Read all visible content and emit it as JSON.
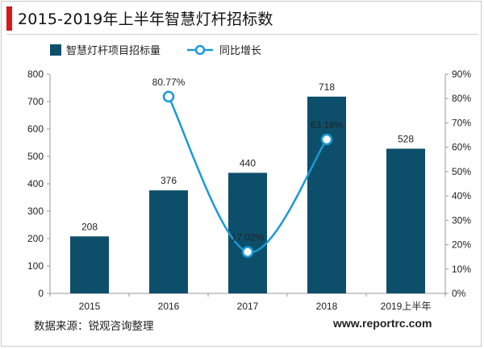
{
  "header": {
    "title": "2015-2019年上半年智慧灯杆招标数",
    "accent_color": "#d9171d"
  },
  "footer": {
    "source": "数据来源：锐观咨询整理",
    "website": "www.reportrc.com"
  },
  "chart_data": {
    "type": "bar",
    "title": "2015-2019年上半年智慧灯杆招标数",
    "categories": [
      "2015",
      "2016",
      "2017",
      "2018",
      "2019上半年"
    ],
    "series": [
      {
        "name": "智慧灯杆项目招标量",
        "type": "bar",
        "axis": "left",
        "color": "#0d4f6b",
        "values": [
          208,
          376,
          440,
          718,
          528
        ],
        "labels": [
          "208",
          "376",
          "440",
          "718",
          "528"
        ]
      },
      {
        "name": "同比增长",
        "type": "line",
        "axis": "right",
        "color": "#1b9ad6",
        "values": [
          null,
          80.77,
          17.02,
          63.18,
          null
        ],
        "labels": [
          "",
          "80.77%",
          "17.02%",
          "63.18%",
          ""
        ]
      }
    ],
    "y_left": {
      "range": [
        0,
        800
      ],
      "ticks": [
        0,
        100,
        200,
        300,
        400,
        500,
        600,
        700,
        800
      ],
      "tick_labels": [
        "0",
        "100",
        "200",
        "300",
        "400",
        "500",
        "600",
        "700",
        "800"
      ]
    },
    "y_right": {
      "range": [
        0,
        90
      ],
      "ticks": [
        0,
        10,
        20,
        30,
        40,
        50,
        60,
        70,
        80,
        90
      ],
      "tick_labels": [
        "0%",
        "10%",
        "20%",
        "30%",
        "40%",
        "50%",
        "60%",
        "70%",
        "80%",
        "90%"
      ]
    },
    "grid": false,
    "legend_position": "top-left"
  }
}
